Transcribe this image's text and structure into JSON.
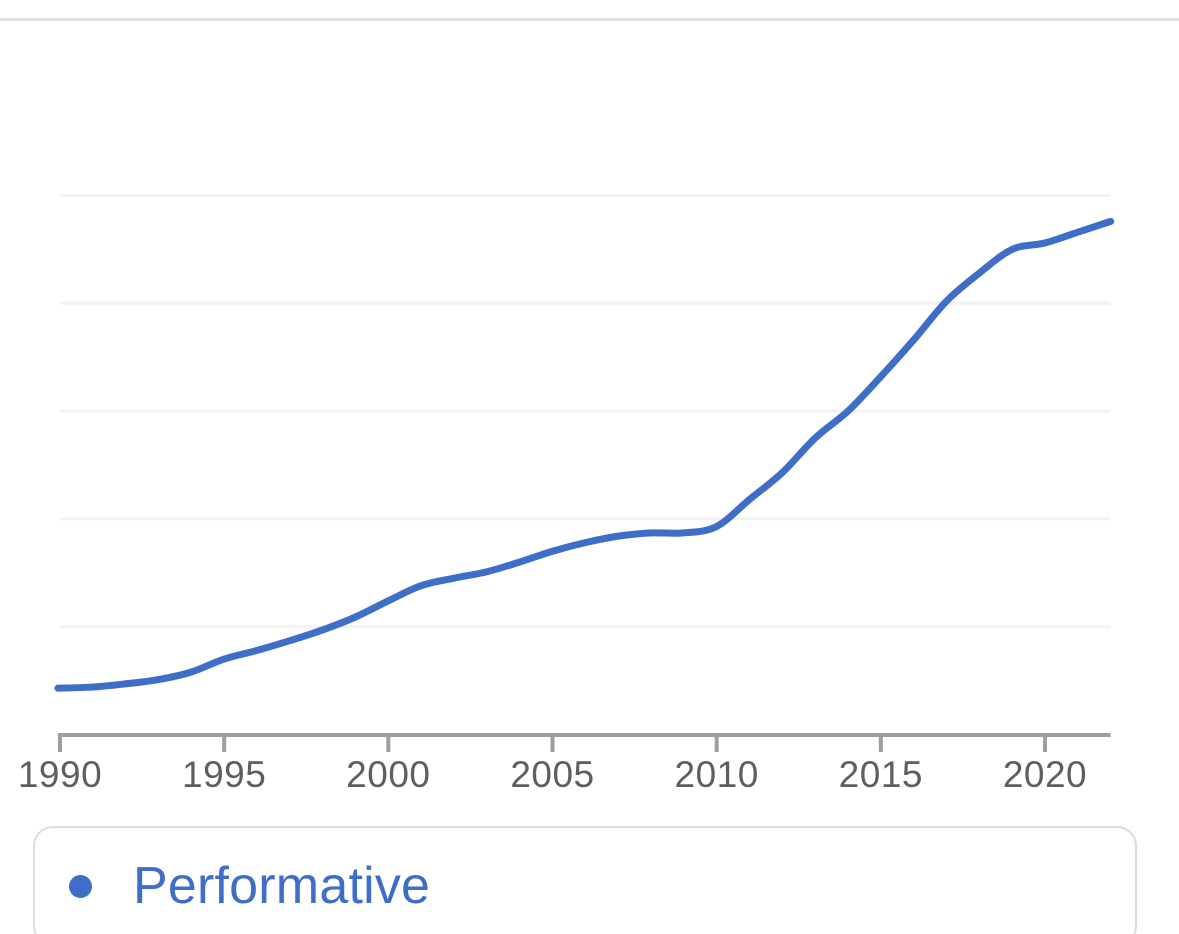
{
  "divider": {
    "color": "#dfdfdf"
  },
  "chart": {
    "x_axis": {
      "tick_labels": [
        "1990",
        "1995",
        "2000",
        "2005",
        "2010",
        "2015",
        "2020"
      ],
      "tick_years": [
        1990,
        1995,
        2000,
        2005,
        2010,
        2015,
        2020
      ]
    },
    "colors": {
      "line": "#3e6ec8",
      "axis": "#9e9e9e",
      "tick_label": "#5e5e5e",
      "gridline": "#f2f2f2"
    }
  },
  "legend": {
    "label": "Performative",
    "colors": {
      "dot": "#3e6ec8",
      "text": "#3e6ec8",
      "border": "#dadce0"
    }
  },
  "chart_data": {
    "type": "line",
    "title": "",
    "xlabel": "",
    "ylabel": "",
    "x_range": [
      1990,
      2022
    ],
    "x_ticks": [
      1990,
      1995,
      2000,
      2005,
      2010,
      2015,
      2020
    ],
    "y_axis_labels_visible": false,
    "y_units_note": "relative frequency in unlabeled gridline units (1 unit = one gridline spacing above the baseline)",
    "y_gridline_units": [
      1,
      2,
      3,
      4,
      5
    ],
    "grid": "horizontal only",
    "legend_position": "bottom",
    "series": [
      {
        "name": "Performative",
        "x": [
          1990,
          1991,
          1992,
          1993,
          1994,
          1995,
          1996,
          1997,
          1998,
          1999,
          2000,
          2001,
          2002,
          2003,
          2004,
          2005,
          2006,
          2007,
          2008,
          2009,
          2010,
          2011,
          2012,
          2013,
          2014,
          2015,
          2016,
          2017,
          2018,
          2019,
          2020,
          2021,
          2022
        ],
        "values": [
          0.43,
          0.44,
          0.47,
          0.51,
          0.58,
          0.7,
          0.78,
          0.87,
          0.97,
          1.09,
          1.24,
          1.38,
          1.45,
          1.51,
          1.6,
          1.7,
          1.78,
          1.84,
          1.87,
          1.87,
          1.93,
          2.18,
          2.43,
          2.75,
          3.0,
          3.32,
          3.66,
          4.02,
          4.28,
          4.5,
          4.56,
          4.66,
          4.76
        ]
      }
    ]
  }
}
